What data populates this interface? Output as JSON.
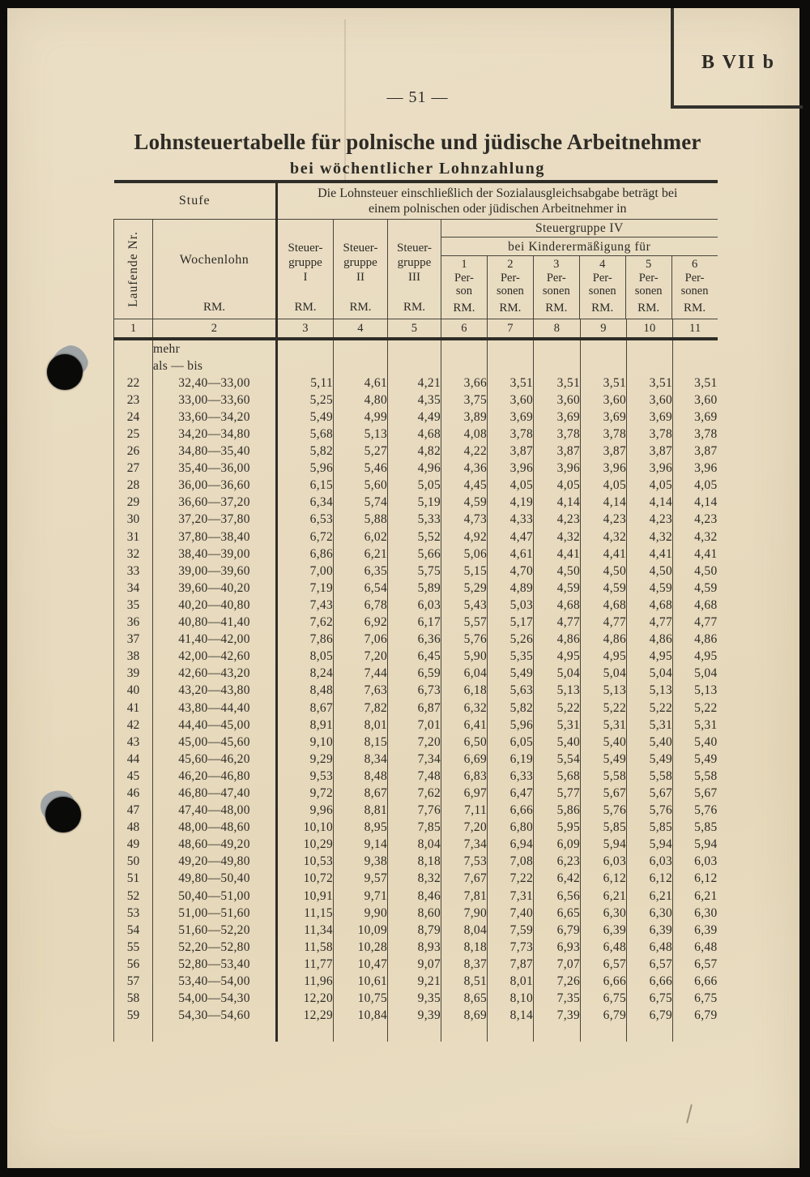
{
  "page": {
    "page_number": "— 51 —",
    "corner_label": "B VII b",
    "title": "Lohnsteuertabelle für polnische und jüdische Arbeitnehmer",
    "subtitle": "bei wöchentlicher Lohnzahlung"
  },
  "colors": {
    "paper": "#e8dbc0",
    "ink": "#2d2b26",
    "table_line": "#47443b",
    "thick_line": "#2f2d27",
    "scan_edge": "#0d0c0a",
    "punch_hole_halo": "#9fa4a6"
  },
  "table": {
    "header": {
      "stufe": "Stufe",
      "heading1": "Die Lohnsteuer einschließlich der Sozialausgleichsabgabe beträgt bei",
      "heading2": "einem polnischen oder jüdischen Arbeitnehmer in",
      "laufende_nr": "Laufende Nr.",
      "wochenlohn": "Wochenlohn",
      "rm": "RM.",
      "sg1": [
        "Steuer-",
        "gruppe",
        "I"
      ],
      "sg2": [
        "Steuer-",
        "gruppe",
        "II"
      ],
      "sg3": [
        "Steuer-",
        "gruppe",
        "III"
      ],
      "sg4_title": "Steuergruppe IV",
      "sg4_sub": "bei Kinderermäßigung für",
      "p1": [
        "1",
        "Per-",
        "son"
      ],
      "p2": [
        "2",
        "Per-",
        "sonen"
      ],
      "p3": [
        "3",
        "Per-",
        "sonen"
      ],
      "p4": [
        "4",
        "Per-",
        "sonen"
      ],
      "p5": [
        "5",
        "Per-",
        "sonen"
      ],
      "p6": [
        "6",
        "Per-",
        "sonen"
      ],
      "col_numbers": [
        "1",
        "2",
        "3",
        "4",
        "5",
        "6",
        "7",
        "8",
        "9",
        "10",
        "11"
      ]
    },
    "pre_rows": [
      "mehr",
      "als — bis"
    ],
    "rows": [
      {
        "nr": "22",
        "lohn": "32,40—33,00",
        "values": [
          "5,11",
          "4,61",
          "4,21",
          "3,66",
          "3,51",
          "3,51",
          "3,51",
          "3,51",
          "3,51"
        ]
      },
      {
        "nr": "23",
        "lohn": "33,00—33,60",
        "values": [
          "5,25",
          "4,80",
          "4,35",
          "3,75",
          "3,60",
          "3,60",
          "3,60",
          "3,60",
          "3,60"
        ]
      },
      {
        "nr": "24",
        "lohn": "33,60—34,20",
        "values": [
          "5,49",
          "4,99",
          "4,49",
          "3,89",
          "3,69",
          "3,69",
          "3,69",
          "3,69",
          "3,69"
        ]
      },
      {
        "nr": "25",
        "lohn": "34,20—34,80",
        "values": [
          "5,68",
          "5,13",
          "4,68",
          "4,08",
          "3,78",
          "3,78",
          "3,78",
          "3,78",
          "3,78"
        ]
      },
      {
        "nr": "26",
        "lohn": "34,80—35,40",
        "values": [
          "5,82",
          "5,27",
          "4,82",
          "4,22",
          "3,87",
          "3,87",
          "3,87",
          "3,87",
          "3,87"
        ]
      },
      {
        "nr": "27",
        "lohn": "35,40—36,00",
        "values": [
          "5,96",
          "5,46",
          "4,96",
          "4,36",
          "3,96",
          "3,96",
          "3,96",
          "3,96",
          "3,96"
        ]
      },
      {
        "nr": "28",
        "lohn": "36,00—36,60",
        "values": [
          "6,15",
          "5,60",
          "5,05",
          "4,45",
          "4,05",
          "4,05",
          "4,05",
          "4,05",
          "4,05"
        ]
      },
      {
        "nr": "29",
        "lohn": "36,60—37,20",
        "values": [
          "6,34",
          "5,74",
          "5,19",
          "4,59",
          "4,19",
          "4,14",
          "4,14",
          "4,14",
          "4,14"
        ]
      },
      {
        "nr": "30",
        "lohn": "37,20—37,80",
        "values": [
          "6,53",
          "5,88",
          "5,33",
          "4,73",
          "4,33",
          "4,23",
          "4,23",
          "4,23",
          "4,23"
        ]
      },
      {
        "nr": "31",
        "lohn": "37,80—38,40",
        "values": [
          "6,72",
          "6,02",
          "5,52",
          "4,92",
          "4,47",
          "4,32",
          "4,32",
          "4,32",
          "4,32"
        ]
      },
      {
        "nr": "32",
        "lohn": "38,40—39,00",
        "values": [
          "6,86",
          "6,21",
          "5,66",
          "5,06",
          "4,61",
          "4,41",
          "4,41",
          "4,41",
          "4,41"
        ]
      },
      {
        "nr": "33",
        "lohn": "39,00—39,60",
        "values": [
          "7,00",
          "6,35",
          "5,75",
          "5,15",
          "4,70",
          "4,50",
          "4,50",
          "4,50",
          "4,50"
        ]
      },
      {
        "nr": "34",
        "lohn": "39,60—40,20",
        "values": [
          "7,19",
          "6,54",
          "5,89",
          "5,29",
          "4,89",
          "4,59",
          "4,59",
          "4,59",
          "4,59"
        ]
      },
      {
        "nr": "35",
        "lohn": "40,20—40,80",
        "values": [
          "7,43",
          "6,78",
          "6,03",
          "5,43",
          "5,03",
          "4,68",
          "4,68",
          "4,68",
          "4,68"
        ]
      },
      {
        "nr": "36",
        "lohn": "40,80—41,40",
        "values": [
          "7,62",
          "6,92",
          "6,17",
          "5,57",
          "5,17",
          "4,77",
          "4,77",
          "4,77",
          "4,77"
        ]
      },
      {
        "nr": "37",
        "lohn": "41,40—42,00",
        "values": [
          "7,86",
          "7,06",
          "6,36",
          "5,76",
          "5,26",
          "4,86",
          "4,86",
          "4,86",
          "4,86"
        ]
      },
      {
        "nr": "38",
        "lohn": "42,00—42,60",
        "values": [
          "8,05",
          "7,20",
          "6,45",
          "5,90",
          "5,35",
          "4,95",
          "4,95",
          "4,95",
          "4,95"
        ]
      },
      {
        "nr": "39",
        "lohn": "42,60—43,20",
        "values": [
          "8,24",
          "7,44",
          "6,59",
          "6,04",
          "5,49",
          "5,04",
          "5,04",
          "5,04",
          "5,04"
        ]
      },
      {
        "nr": "40",
        "lohn": "43,20—43,80",
        "values": [
          "8,48",
          "7,63",
          "6,73",
          "6,18",
          "5,63",
          "5,13",
          "5,13",
          "5,13",
          "5,13"
        ]
      },
      {
        "nr": "41",
        "lohn": "43,80—44,40",
        "values": [
          "8,67",
          "7,82",
          "6,87",
          "6,32",
          "5,82",
          "5,22",
          "5,22",
          "5,22",
          "5,22"
        ]
      },
      {
        "nr": "42",
        "lohn": "44,40—45,00",
        "values": [
          "8,91",
          "8,01",
          "7,01",
          "6,41",
          "5,96",
          "5,31",
          "5,31",
          "5,31",
          "5,31"
        ]
      },
      {
        "nr": "43",
        "lohn": "45,00—45,60",
        "values": [
          "9,10",
          "8,15",
          "7,20",
          "6,50",
          "6,05",
          "5,40",
          "5,40",
          "5,40",
          "5,40"
        ]
      },
      {
        "nr": "44",
        "lohn": "45,60—46,20",
        "values": [
          "9,29",
          "8,34",
          "7,34",
          "6,69",
          "6,19",
          "5,54",
          "5,49",
          "5,49",
          "5,49"
        ]
      },
      {
        "nr": "45",
        "lohn": "46,20—46,80",
        "values": [
          "9,53",
          "8,48",
          "7,48",
          "6,83",
          "6,33",
          "5,68",
          "5,58",
          "5,58",
          "5,58"
        ]
      },
      {
        "nr": "46",
        "lohn": "46,80—47,40",
        "values": [
          "9,72",
          "8,67",
          "7,62",
          "6,97",
          "6,47",
          "5,77",
          "5,67",
          "5,67",
          "5,67"
        ]
      },
      {
        "nr": "47",
        "lohn": "47,40—48,00",
        "values": [
          "9,96",
          "8,81",
          "7,76",
          "7,11",
          "6,66",
          "5,86",
          "5,76",
          "5,76",
          "5,76"
        ]
      },
      {
        "nr": "48",
        "lohn": "48,00—48,60",
        "values": [
          "10,10",
          "8,95",
          "7,85",
          "7,20",
          "6,80",
          "5,95",
          "5,85",
          "5,85",
          "5,85"
        ]
      },
      {
        "nr": "49",
        "lohn": "48,60—49,20",
        "values": [
          "10,29",
          "9,14",
          "8,04",
          "7,34",
          "6,94",
          "6,09",
          "5,94",
          "5,94",
          "5,94"
        ]
      },
      {
        "nr": "50",
        "lohn": "49,20—49,80",
        "values": [
          "10,53",
          "9,38",
          "8,18",
          "7,53",
          "7,08",
          "6,23",
          "6,03",
          "6,03",
          "6,03"
        ]
      },
      {
        "nr": "51",
        "lohn": "49,80—50,40",
        "values": [
          "10,72",
          "9,57",
          "8,32",
          "7,67",
          "7,22",
          "6,42",
          "6,12",
          "6,12",
          "6,12"
        ]
      },
      {
        "nr": "52",
        "lohn": "50,40—51,00",
        "values": [
          "10,91",
          "9,71",
          "8,46",
          "7,81",
          "7,31",
          "6,56",
          "6,21",
          "6,21",
          "6,21"
        ]
      },
      {
        "nr": "53",
        "lohn": "51,00—51,60",
        "values": [
          "11,15",
          "9,90",
          "8,60",
          "7,90",
          "7,40",
          "6,65",
          "6,30",
          "6,30",
          "6,30"
        ]
      },
      {
        "nr": "54",
        "lohn": "51,60—52,20",
        "values": [
          "11,34",
          "10,09",
          "8,79",
          "8,04",
          "7,59",
          "6,79",
          "6,39",
          "6,39",
          "6,39"
        ]
      },
      {
        "nr": "55",
        "lohn": "52,20—52,80",
        "values": [
          "11,58",
          "10,28",
          "8,93",
          "8,18",
          "7,73",
          "6,93",
          "6,48",
          "6,48",
          "6,48"
        ]
      },
      {
        "nr": "56",
        "lohn": "52,80—53,40",
        "values": [
          "11,77",
          "10,47",
          "9,07",
          "8,37",
          "7,87",
          "7,07",
          "6,57",
          "6,57",
          "6,57"
        ]
      },
      {
        "nr": "57",
        "lohn": "53,40—54,00",
        "values": [
          "11,96",
          "10,61",
          "9,21",
          "8,51",
          "8,01",
          "7,26",
          "6,66",
          "6,66",
          "6,66"
        ]
      },
      {
        "nr": "58",
        "lohn": "54,00—54,30",
        "values": [
          "12,20",
          "10,75",
          "9,35",
          "8,65",
          "8,10",
          "7,35",
          "6,75",
          "6,75",
          "6,75"
        ]
      },
      {
        "nr": "59",
        "lohn": "54,30—54,60",
        "values": [
          "12,29",
          "10,84",
          "9,39",
          "8,69",
          "8,14",
          "7,39",
          "6,79",
          "6,79",
          "6,79"
        ]
      }
    ]
  }
}
